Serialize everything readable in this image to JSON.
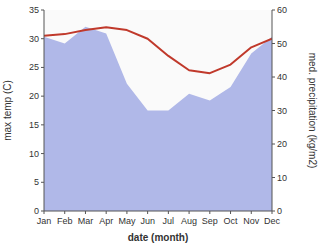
{
  "chart_data": {
    "type": "line",
    "xlabel": "date (month)",
    "ylabel": "max temp (C)",
    "y2label": "med. precipitation (kg/m2)",
    "categories": [
      "Jan",
      "Feb",
      "Mar",
      "Apr",
      "May",
      "Jun",
      "Jul",
      "Aug",
      "Sep",
      "Oct",
      "Nov",
      "Dec"
    ],
    "series": [
      {
        "type": "area",
        "axis": "y2",
        "color": "#b0b8e8",
        "values": [
          52,
          50,
          55,
          53,
          38,
          30,
          30,
          35,
          33,
          37,
          47,
          52
        ]
      },
      {
        "type": "line",
        "color": "#c0392b",
        "values": [
          30.5,
          30.8,
          31.5,
          32.0,
          31.5,
          30.0,
          27.0,
          24.5,
          24.0,
          25.5,
          28.5,
          30.0
        ]
      }
    ],
    "ylim": [
      0,
      35
    ],
    "yticks": [
      0,
      5,
      10,
      15,
      20,
      25,
      30,
      35
    ],
    "y2lim": [
      0,
      60
    ],
    "y2ticks": [
      0,
      10,
      20,
      30,
      40,
      50,
      60
    ],
    "grid": false
  }
}
